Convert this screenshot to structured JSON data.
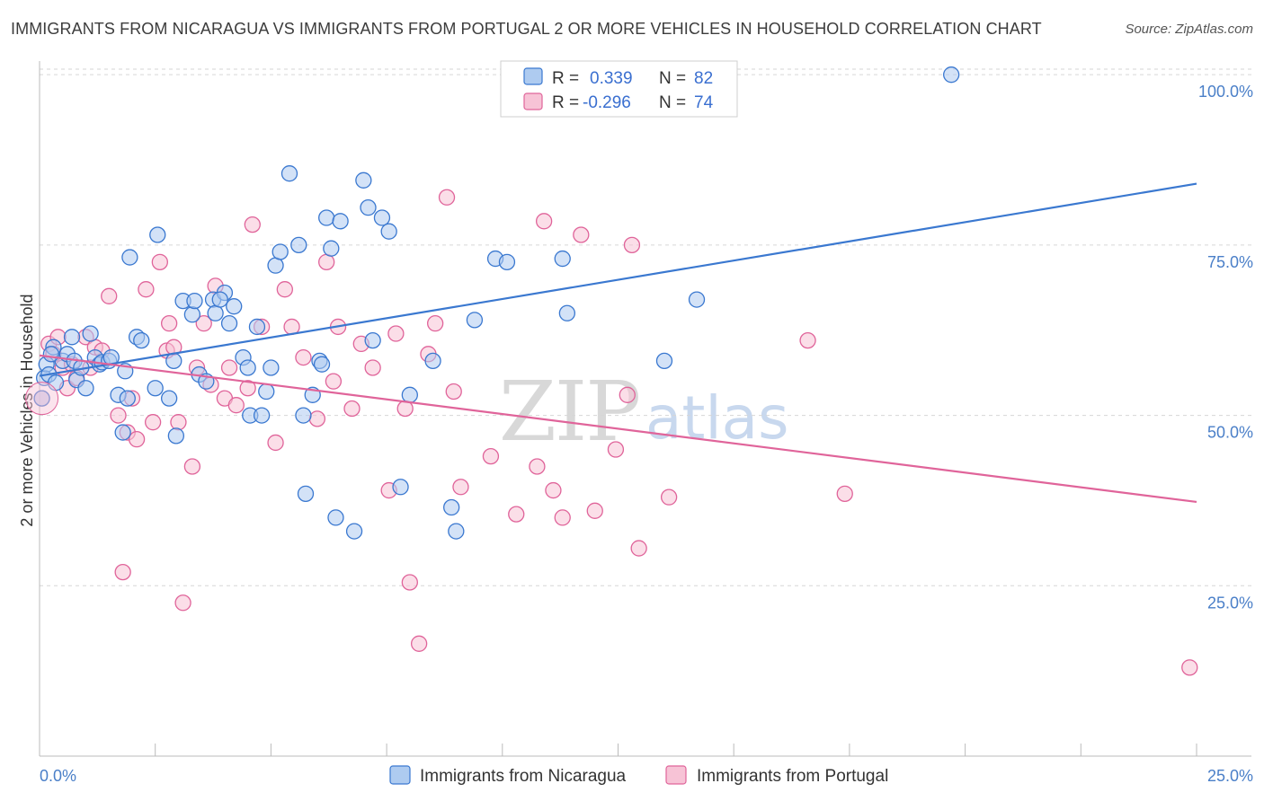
{
  "title": "IMMIGRANTS FROM NICARAGUA VS IMMIGRANTS FROM PORTUGAL 2 OR MORE VEHICLES IN HOUSEHOLD CORRELATION CHART",
  "source": "Source: ZipAtlas.com",
  "watermark": {
    "part1": "ZIP",
    "part2": "atlas"
  },
  "colors": {
    "blue": "#3a78d0",
    "blue_fill": "#aecbf0",
    "pink": "#e0649a",
    "pink_fill": "#f7c3d6",
    "grid": "#d6d6d6",
    "tick_text": "#4a7fc8"
  },
  "legend": {
    "r_label": "R =",
    "n_label": "N =",
    "rows": [
      {
        "r": "0.339",
        "n": "82"
      },
      {
        "r": "-0.296",
        "n": "74"
      }
    ]
  },
  "chart_data": {
    "type": "scatter",
    "title": "IMMIGRANTS FROM NICARAGUA VS IMMIGRANTS FROM PORTUGAL 2 OR MORE VEHICLES IN HOUSEHOLD CORRELATION CHART",
    "xlabel": "",
    "ylabel": "2 or more Vehicles in Household",
    "xlim": [
      0,
      25
    ],
    "ylim": [
      0,
      102
    ],
    "x_tick_labels": [
      "0.0%",
      "25.0%"
    ],
    "y_ticks": [
      25,
      50,
      75,
      100
    ],
    "y_tick_labels": [
      "25.0%",
      "50.0%",
      "75.0%",
      "100.0%"
    ],
    "grid": true,
    "series": [
      {
        "name": "Immigrants from Nicaragua",
        "r": 0.339,
        "n": 82,
        "trend": {
          "x0": 0,
          "y0": 55.8,
          "x1": 25,
          "y1": 84.0
        },
        "points": [
          [
            0.05,
            52.5
          ],
          [
            0.1,
            55.5
          ],
          [
            0.15,
            57.5
          ],
          [
            0.2,
            56.0
          ],
          [
            0.3,
            60.0
          ],
          [
            0.35,
            54.8
          ],
          [
            0.5,
            58.0
          ],
          [
            0.6,
            59.0
          ],
          [
            0.7,
            61.5
          ],
          [
            0.75,
            58.0
          ],
          [
            0.8,
            55.2
          ],
          [
            0.9,
            57.0
          ],
          [
            1.0,
            54.0
          ],
          [
            1.2,
            58.5
          ],
          [
            1.3,
            57.5
          ],
          [
            1.35,
            57.8
          ],
          [
            1.5,
            58.0
          ],
          [
            1.55,
            58.5
          ],
          [
            1.7,
            53.0
          ],
          [
            1.8,
            47.5
          ],
          [
            1.85,
            56.5
          ],
          [
            1.9,
            52.5
          ],
          [
            1.95,
            73.2
          ],
          [
            2.1,
            61.5
          ],
          [
            2.2,
            61.0
          ],
          [
            2.5,
            54.0
          ],
          [
            2.55,
            76.5
          ],
          [
            2.8,
            52.5
          ],
          [
            2.9,
            58.0
          ],
          [
            2.95,
            47.0
          ],
          [
            3.1,
            66.8
          ],
          [
            3.3,
            64.8
          ],
          [
            3.35,
            66.8
          ],
          [
            3.45,
            56.0
          ],
          [
            3.6,
            55.0
          ],
          [
            3.75,
            67.0
          ],
          [
            3.8,
            65.0
          ],
          [
            4.0,
            68.0
          ],
          [
            4.1,
            63.5
          ],
          [
            4.2,
            66.0
          ],
          [
            4.4,
            58.5
          ],
          [
            4.5,
            57.0
          ],
          [
            4.55,
            50.0
          ],
          [
            4.7,
            63.0
          ],
          [
            4.8,
            50.0
          ],
          [
            4.9,
            53.5
          ],
          [
            5.0,
            57.0
          ],
          [
            5.1,
            72.0
          ],
          [
            5.2,
            74.0
          ],
          [
            5.4,
            85.5
          ],
          [
            5.6,
            75.0
          ],
          [
            5.7,
            50.0
          ],
          [
            5.75,
            38.5
          ],
          [
            5.9,
            53.0
          ],
          [
            6.05,
            58.0
          ],
          [
            6.2,
            79.0
          ],
          [
            6.3,
            74.5
          ],
          [
            6.4,
            35.0
          ],
          [
            6.5,
            78.5
          ],
          [
            6.8,
            33.0
          ],
          [
            7.0,
            84.5
          ],
          [
            7.1,
            80.5
          ],
          [
            7.2,
            61.0
          ],
          [
            7.4,
            79.0
          ],
          [
            7.55,
            77.0
          ],
          [
            7.8,
            39.5
          ],
          [
            8.0,
            53.0
          ],
          [
            8.5,
            58.0
          ],
          [
            8.9,
            36.5
          ],
          [
            9.0,
            33.0
          ],
          [
            9.4,
            64.0
          ],
          [
            9.85,
            73.0
          ],
          [
            10.1,
            72.5
          ],
          [
            11.3,
            73.0
          ],
          [
            11.4,
            65.0
          ],
          [
            13.5,
            58.0
          ],
          [
            14.2,
            67.0
          ],
          [
            19.7,
            100.0
          ],
          [
            0.25,
            59.0
          ],
          [
            1.1,
            62.0
          ],
          [
            3.9,
            67.0
          ],
          [
            6.1,
            57.5
          ]
        ]
      },
      {
        "name": "Immigrants from Portugal",
        "r": -0.296,
        "n": 74,
        "trend": {
          "x0": 0,
          "y0": 58.8,
          "x1": 25,
          "y1": 37.3
        },
        "points": [
          [
            0.05,
            52.5
          ],
          [
            0.2,
            60.5
          ],
          [
            0.3,
            59.0
          ],
          [
            0.4,
            61.5
          ],
          [
            0.5,
            57.0
          ],
          [
            0.6,
            54.0
          ],
          [
            0.7,
            57.5
          ],
          [
            0.8,
            55.5
          ],
          [
            1.0,
            61.5
          ],
          [
            1.1,
            57.0
          ],
          [
            1.2,
            60.0
          ],
          [
            1.35,
            59.5
          ],
          [
            1.5,
            67.5
          ],
          [
            1.7,
            50.0
          ],
          [
            1.8,
            27.0
          ],
          [
            1.9,
            47.5
          ],
          [
            2.0,
            52.5
          ],
          [
            2.1,
            46.5
          ],
          [
            2.3,
            68.5
          ],
          [
            2.45,
            49.0
          ],
          [
            2.6,
            72.5
          ],
          [
            2.75,
            59.5
          ],
          [
            2.9,
            60.0
          ],
          [
            3.0,
            49.0
          ],
          [
            3.1,
            22.5
          ],
          [
            3.3,
            42.5
          ],
          [
            3.4,
            57.0
          ],
          [
            3.55,
            63.5
          ],
          [
            3.7,
            54.5
          ],
          [
            3.8,
            69.0
          ],
          [
            4.0,
            52.5
          ],
          [
            4.1,
            57.0
          ],
          [
            4.25,
            51.5
          ],
          [
            4.5,
            54.0
          ],
          [
            4.6,
            78.0
          ],
          [
            4.8,
            63.0
          ],
          [
            5.1,
            46.0
          ],
          [
            5.3,
            68.5
          ],
          [
            5.45,
            63.0
          ],
          [
            5.7,
            58.5
          ],
          [
            6.0,
            49.5
          ],
          [
            6.2,
            72.5
          ],
          [
            6.35,
            55.0
          ],
          [
            6.45,
            63.0
          ],
          [
            6.75,
            51.0
          ],
          [
            6.95,
            60.5
          ],
          [
            7.2,
            57.0
          ],
          [
            7.55,
            39.0
          ],
          [
            7.7,
            62.0
          ],
          [
            7.9,
            51.0
          ],
          [
            8.0,
            25.5
          ],
          [
            8.2,
            16.5
          ],
          [
            8.4,
            59.0
          ],
          [
            8.55,
            63.5
          ],
          [
            8.8,
            82.0
          ],
          [
            8.95,
            53.5
          ],
          [
            9.1,
            39.5
          ],
          [
            9.75,
            44.0
          ],
          [
            10.3,
            35.5
          ],
          [
            10.75,
            42.5
          ],
          [
            10.9,
            78.5
          ],
          [
            11.1,
            39.0
          ],
          [
            11.3,
            35.0
          ],
          [
            11.7,
            76.5
          ],
          [
            12.0,
            36.0
          ],
          [
            12.45,
            45.0
          ],
          [
            12.7,
            53.0
          ],
          [
            12.8,
            75.0
          ],
          [
            12.95,
            30.5
          ],
          [
            13.6,
            38.0
          ],
          [
            16.6,
            61.0
          ],
          [
            17.4,
            38.5
          ],
          [
            24.85,
            13.0
          ],
          [
            2.8,
            63.5
          ]
        ]
      }
    ]
  }
}
